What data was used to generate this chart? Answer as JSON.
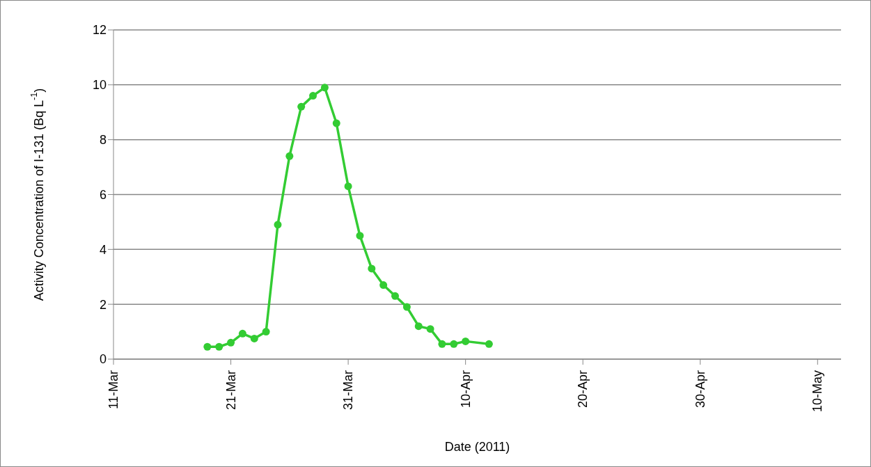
{
  "chart_data": {
    "type": "line",
    "xlabel": "Date (2011)",
    "ylabel": "Activity Concentration of I-131 (Bq L$^{-1}$)",
    "x": [
      "2011-03-19",
      "2011-03-20",
      "2011-03-21",
      "2011-03-22",
      "2011-03-23",
      "2011-03-24",
      "2011-03-25",
      "2011-03-26",
      "2011-03-27",
      "2011-03-28",
      "2011-03-29",
      "2011-03-30",
      "2011-03-31",
      "2011-04-01",
      "2011-04-02",
      "2011-04-03",
      "2011-04-04",
      "2011-04-05",
      "2011-04-06",
      "2011-04-07",
      "2011-04-08",
      "2011-04-09",
      "2011-04-10",
      "2011-04-12"
    ],
    "series": [
      {
        "color": "#33cc33",
        "values": [
          0.45,
          0.45,
          0.6,
          0.93,
          0.75,
          1.0,
          4.9,
          7.4,
          9.2,
          9.6,
          9.9,
          8.6,
          6.3,
          4.5,
          3.3,
          2.7,
          2.3,
          1.9,
          1.2,
          1.1,
          0.55,
          0.55,
          0.65,
          0.55
        ]
      }
    ],
    "xlim": [
      "2011-03-11",
      "2011-05-12"
    ],
    "xticks": [
      {
        "value": "2011-03-11",
        "label": "11-Mar"
      },
      {
        "value": "2011-03-21",
        "label": "21-Mar"
      },
      {
        "value": "2011-03-31",
        "label": "31-Mar"
      },
      {
        "value": "2011-04-10",
        "label": "10-Apr"
      },
      {
        "value": "2011-04-20",
        "label": "20-Apr"
      },
      {
        "value": "2011-04-30",
        "label": "30-Apr"
      },
      {
        "value": "2011-05-10",
        "label": "10-May"
      }
    ],
    "ylim": [
      0,
      12
    ],
    "yticks": [
      0,
      2,
      4,
      6,
      8,
      10,
      12
    ],
    "grid": "y",
    "marker": "circle",
    "line_style": "solid"
  }
}
